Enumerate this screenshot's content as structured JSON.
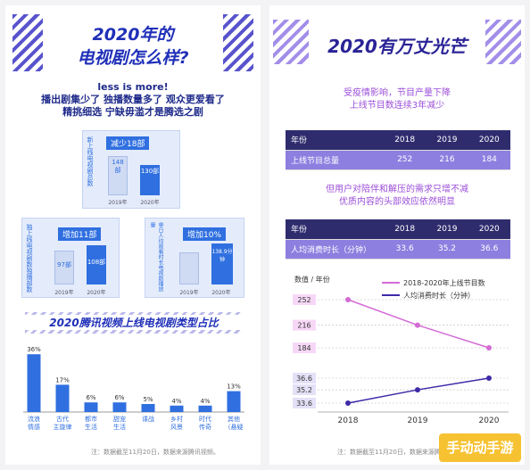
{
  "left": {
    "title_line1": "2020年的",
    "title_line2": "电视剧怎么样?",
    "subtitle_line1": "less is more!",
    "subtitle_line2": "播出剧集少了  独播数量多了  观众更爱看了",
    "subtitle_line3": "精挑细选  宁缺毋滥才是腾选之剧",
    "card1": {
      "tag": "减少18部",
      "side": "新上线电视剧总数",
      "labels": [
        "2019年",
        "2020年"
      ],
      "values": [
        "148部",
        "130部"
      ],
      "numbers": [
        148,
        130
      ]
    },
    "card2": {
      "tag": "增加11部",
      "side": "独上线电视剧数独播部数",
      "labels": [
        "2019年",
        "2020年"
      ],
      "values": [
        "97部",
        "108部"
      ],
      "numbers": [
        97,
        108
      ]
    },
    "card3": {
      "tag": "增加10%",
      "side": "单日人均观看时长电视剧播放量",
      "labels": [
        "2019年",
        "2020年"
      ],
      "values": [
        "",
        "138.9分钟"
      ],
      "numbers": [
        126,
        138.9
      ]
    },
    "chart_title": "2020腾讯视频上线电视剧类型占比",
    "footnote": "注：数据截至11月20日，数据来源腾讯视频。",
    "brand": "手动动手游"
  },
  "chart_data": [
    {
      "type": "bar",
      "title": "2020腾讯视频上线电视剧类型占比",
      "categories": [
        "流浪情感",
        "古代主旋律",
        "都市生活",
        "甜宠生活",
        "谍战",
        "乡村风景",
        "时代传奇",
        "其他（悬疑、武侠、青春励志、战争等）"
      ],
      "values": [
        36,
        17,
        6,
        6,
        5,
        4,
        4,
        13
      ],
      "value_labels": [
        "36%",
        "17%",
        "6%",
        "6%",
        "5%",
        "4%",
        "4%",
        "13%"
      ]
    },
    {
      "type": "line",
      "title": "",
      "x": [
        "2018",
        "2019",
        "2020"
      ],
      "ylabel": "数值 / 年份",
      "series": [
        {
          "name": "2018-2020年上线节目数",
          "values": [
            252,
            216,
            184
          ],
          "color": "#d46bd6"
        },
        {
          "name": "人均消费时长（分钟）",
          "values": [
            33.6,
            35.2,
            36.6
          ],
          "color": "#3f2aa8"
        }
      ],
      "yticks": [
        "252",
        "216",
        "184",
        "36.6",
        "35.2",
        "33.6"
      ]
    }
  ],
  "right": {
    "title": "2020有万丈光芒",
    "caption1_line1": "受疫情影响，节目产量下降",
    "caption1_line2": "上线节目数连续3年减少",
    "table1": {
      "header": [
        "年份",
        "2018",
        "2019",
        "2020"
      ],
      "row": [
        "上线节目总量",
        "252",
        "216",
        "184"
      ]
    },
    "caption2_line1": "但用户对陪伴和解压的需求只增不减",
    "caption2_line2": "优质内容的头部效应依然明显",
    "table2": {
      "header": [
        "年份",
        "2018",
        "2019",
        "2020"
      ],
      "row": [
        "人均消费时长（分钟）",
        "33.6",
        "35.2",
        "36.6"
      ]
    },
    "footnote": "注：数据截至11月20日，数据来源腾讯视频。"
  },
  "colors": {
    "blue": "#2f6fe0",
    "navy": "#1f2fb8",
    "purple": "#8d7fe0",
    "dark": "#2f2c6e"
  }
}
